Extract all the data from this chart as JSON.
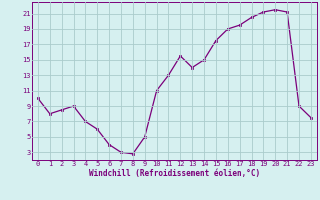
{
  "x": [
    0,
    1,
    2,
    3,
    4,
    5,
    6,
    7,
    8,
    9,
    10,
    11,
    12,
    13,
    14,
    15,
    16,
    17,
    18,
    19,
    20,
    21,
    22,
    23
  ],
  "y": [
    10,
    8,
    8.5,
    9,
    7,
    6,
    4,
    3,
    2.8,
    5,
    11,
    13,
    15.5,
    14,
    15,
    17.5,
    19,
    19.5,
    20.5,
    21.2,
    21.5,
    21.2,
    9,
    7.5
  ],
  "line_color": "#7b007b",
  "marker_color": "#7b007b",
  "bg_color": "#d6f0f0",
  "grid_color": "#aacccc",
  "xlabel": "Windchill (Refroidissement éolien,°C)",
  "ylabel_ticks": [
    3,
    5,
    7,
    9,
    11,
    13,
    15,
    17,
    19,
    21
  ],
  "ylim": [
    2.0,
    22.5
  ],
  "xlim": [
    -0.5,
    23.5
  ],
  "xticks": [
    0,
    1,
    2,
    3,
    4,
    5,
    6,
    7,
    8,
    9,
    10,
    11,
    12,
    13,
    14,
    15,
    16,
    17,
    18,
    19,
    20,
    21,
    22,
    23
  ],
  "font_color": "#7b007b",
  "tick_fontsize": 5.0,
  "xlabel_fontsize": 5.5
}
